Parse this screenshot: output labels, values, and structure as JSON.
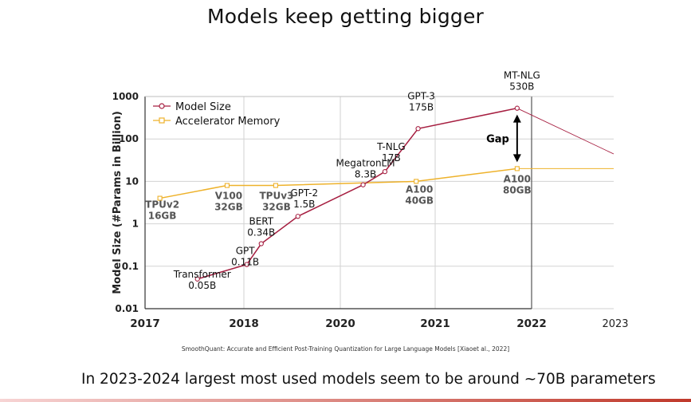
{
  "slide": {
    "title": "Models keep getting bigger",
    "citation": "SmoothQuant: Accurate and Efficient Post-Training Quantization for Large Language Models [Xiaoet al., 2022]",
    "footer_note": "In 2023-2024 largest most used models seem to be around ~70B parameters"
  },
  "chart_data": {
    "type": "line",
    "ylabel": "Model Size (#Params in Billion)",
    "yscale": "log",
    "ylim": [
      0.01,
      1000
    ],
    "y_ticks": [
      "0.01",
      "0.1",
      "1",
      "10",
      "100",
      "1000"
    ],
    "x_ticks": [
      "2017",
      "2018",
      "2020",
      "2021",
      "2022",
      "2023"
    ],
    "grid": true,
    "legend_position": "top-left",
    "colors": {
      "model_size": "#a61e40",
      "accelerator_memory": "#eeb22b"
    },
    "series": [
      {
        "name": "Model Size",
        "points": [
          {
            "x": "2017.53",
            "y": 0.05,
            "label": "Transformer",
            "value_label": "0.05B"
          },
          {
            "x": "2018.06",
            "y": 0.11,
            "label": "GPT",
            "value_label": "0.11B"
          },
          {
            "x": "2018.36",
            "y": 0.34,
            "label": "BERT",
            "value_label": "0.34B"
          },
          {
            "x": "2019.12",
            "y": 1.5,
            "label": "GPT-2",
            "value_label": "1.5B"
          },
          {
            "x": "2020.24",
            "y": 8.3,
            "label": "MegatronLM",
            "value_label": "8.3B"
          },
          {
            "x": "2020.47",
            "y": 17,
            "label": "T-NLG",
            "value_label": "17B"
          },
          {
            "x": "2020.82",
            "y": 175,
            "label": "GPT-3",
            "value_label": "175B"
          },
          {
            "x": "2021.85",
            "y": 530,
            "label": "MT-NLG",
            "value_label": "530B"
          }
        ]
      },
      {
        "name": "Accelerator Memory",
        "points": [
          {
            "x": "2017.15",
            "y": 4,
            "label": "TPUv2",
            "value_label": "16GB"
          },
          {
            "x": "2017.83",
            "y": 8,
            "label": "V100",
            "value_label": "32GB"
          },
          {
            "x": "2018.66",
            "y": 8,
            "label": "TPUv3",
            "value_label": "32GB"
          },
          {
            "x": "2020.80",
            "y": 10,
            "label": "A100",
            "value_label": "40GB"
          },
          {
            "x": "2021.85",
            "y": 20,
            "label": "A100",
            "value_label": "80GB"
          }
        ]
      }
    ],
    "annotations": [
      {
        "text": "Gap",
        "from": 20,
        "to": 530,
        "x": "2021.85"
      }
    ]
  }
}
